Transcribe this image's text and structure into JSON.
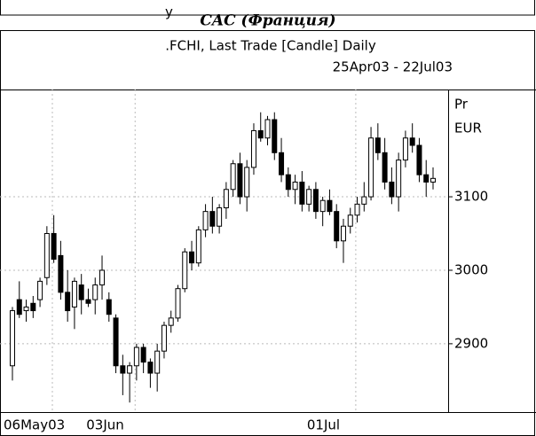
{
  "header_fragment": "у",
  "chart_data": {
    "type": "candlestick",
    "title": "CAC (Франция)",
    "subtitle": ".FCHI, Last Trade [Candle] Daily",
    "date_range": "25Apr03 - 22Jul03",
    "axis_label": [
      "Pr",
      "EUR"
    ],
    "ylim": [
      2807,
      3246
    ],
    "yticks": [
      2900,
      3000,
      3100
    ],
    "grid": true,
    "categories": [
      "06May03",
      null,
      null,
      null,
      null,
      null,
      null,
      null,
      null,
      null,
      null,
      null,
      "03Jun",
      null,
      null,
      null,
      null,
      null,
      null,
      null,
      null,
      null,
      null,
      null,
      null,
      null,
      null,
      null,
      null,
      null,
      null,
      null,
      null,
      null,
      null,
      null,
      null,
      null,
      null,
      null,
      null,
      null,
      null,
      null,
      "01Jul",
      null,
      null,
      null,
      null,
      null,
      null,
      null,
      null,
      null,
      null,
      null,
      null,
      null,
      null,
      null,
      null,
      null
    ],
    "open": [
      2870,
      2960,
      2945,
      2955,
      2960,
      2990,
      3050,
      3020,
      2970,
      2950,
      2980,
      2960,
      2960,
      2980,
      2960,
      2935,
      2870,
      2860,
      2870,
      2895,
      2875,
      2860,
      2890,
      2925,
      2935,
      2975,
      3025,
      3010,
      3055,
      3080,
      3060,
      3085,
      3110,
      3145,
      3100,
      3140,
      3190,
      3180,
      3205,
      3160,
      3130,
      3110,
      3120,
      3090,
      3110,
      3080,
      3095,
      3080,
      3040,
      3060,
      3075,
      3090,
      3100,
      3180,
      3160,
      3120,
      3100,
      3150,
      3180,
      3170,
      3130,
      3120
    ],
    "high": [
      2950,
      2985,
      2960,
      2965,
      2990,
      3060,
      3075,
      3040,
      3000,
      2990,
      2995,
      2975,
      2990,
      3020,
      2970,
      2940,
      2885,
      2875,
      2900,
      2900,
      2880,
      2900,
      2930,
      2945,
      2980,
      3030,
      3040,
      3060,
      3090,
      3100,
      3090,
      3120,
      3150,
      3160,
      3150,
      3200,
      3215,
      3210,
      3215,
      3180,
      3140,
      3130,
      3135,
      3115,
      3120,
      3100,
      3110,
      3090,
      3070,
      3085,
      3100,
      3120,
      3195,
      3200,
      3180,
      3140,
      3160,
      3190,
      3200,
      3180,
      3150,
      3140
    ],
    "low": [
      2850,
      2935,
      2930,
      2935,
      2950,
      2980,
      3010,
      2960,
      2930,
      2920,
      2940,
      2950,
      2940,
      2960,
      2930,
      2860,
      2830,
      2820,
      2850,
      2860,
      2840,
      2835,
      2880,
      2915,
      2930,
      2970,
      3000,
      3005,
      3045,
      3050,
      3050,
      3070,
      3100,
      3090,
      3080,
      3130,
      3175,
      3170,
      3150,
      3120,
      3100,
      3090,
      3080,
      3080,
      3070,
      3060,
      3075,
      3030,
      3010,
      3050,
      3065,
      3080,
      3095,
      3150,
      3110,
      3090,
      3080,
      3140,
      3160,
      3120,
      3100,
      3110
    ],
    "close": [
      2945,
      2940,
      2950,
      2945,
      2985,
      3050,
      3015,
      2970,
      2945,
      2985,
      2960,
      2955,
      2980,
      3000,
      2940,
      2870,
      2860,
      2870,
      2895,
      2875,
      2860,
      2890,
      2925,
      2935,
      2975,
      3025,
      3010,
      3055,
      3080,
      3060,
      3085,
      3110,
      3145,
      3100,
      3140,
      3190,
      3180,
      3205,
      3160,
      3130,
      3110,
      3120,
      3090,
      3110,
      3080,
      3095,
      3080,
      3040,
      3060,
      3075,
      3090,
      3100,
      3180,
      3160,
      3120,
      3100,
      3150,
      3180,
      3170,
      3130,
      3120,
      3125
    ]
  }
}
